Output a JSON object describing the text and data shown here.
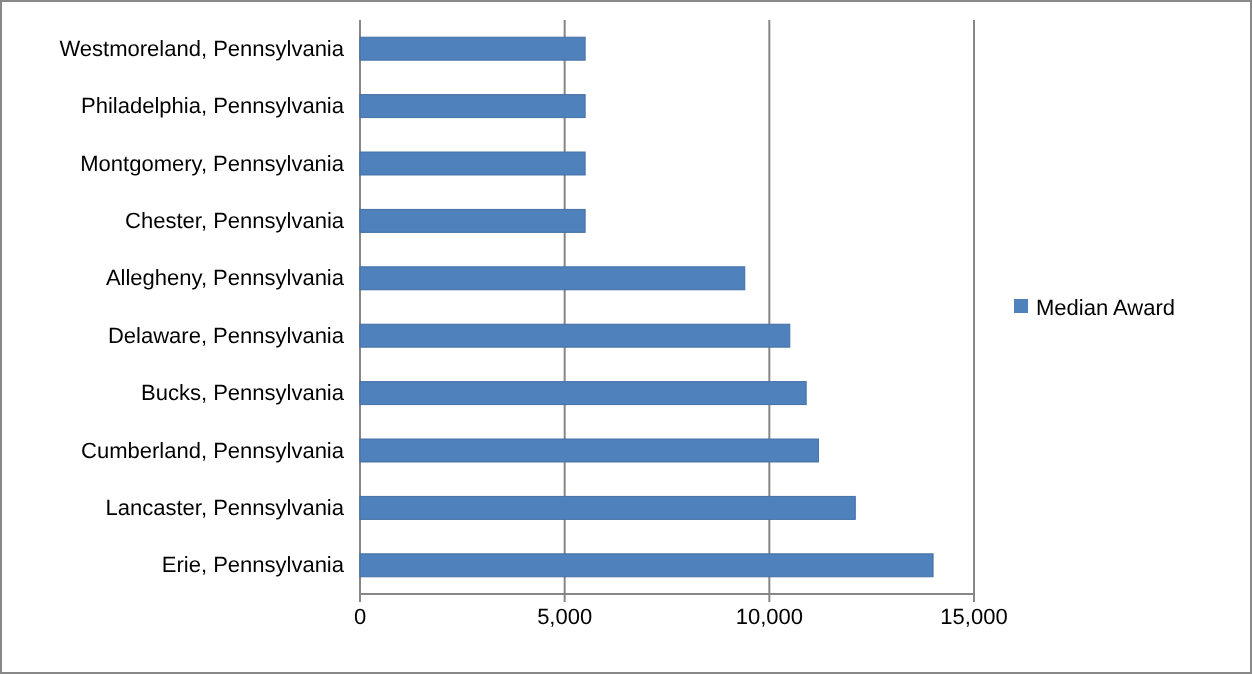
{
  "chart_data": {
    "type": "bar",
    "orientation": "horizontal",
    "categories": [
      "Westmoreland, Pennsylvania",
      "Philadelphia, Pennsylvania",
      "Montgomery, Pennsylvania",
      "Chester, Pennsylvania",
      "Allegheny, Pennsylvania",
      "Delaware, Pennsylvania",
      "Bucks, Pennsylvania",
      "Cumberland, Pennsylvania",
      "Lancaster, Pennsylvania",
      "Erie, Pennsylvania"
    ],
    "series": [
      {
        "name": "Median Award",
        "color": "#4f81bd",
        "values": [
          5500,
          5500,
          5500,
          5500,
          9400,
          10500,
          10900,
          11200,
          12100,
          14000
        ]
      }
    ],
    "xlim": [
      0,
      15000
    ],
    "xticks": [
      {
        "value": 0,
        "label": "0"
      },
      {
        "value": 5000,
        "label": "5,000"
      },
      {
        "value": 10000,
        "label": "10,000"
      },
      {
        "value": 15000,
        "label": "15,000"
      }
    ],
    "grid": "x",
    "legend": "right"
  }
}
